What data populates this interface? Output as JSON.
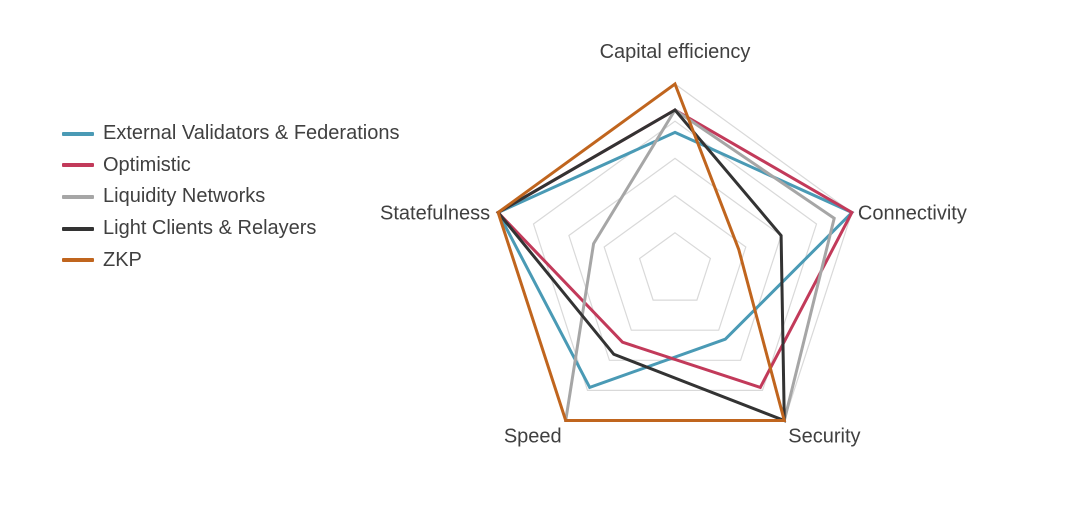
{
  "chart_data": {
    "type": "radar",
    "axes": [
      "Capital efficiency",
      "Connectivity",
      "Security",
      "Speed",
      "Statefulness"
    ],
    "rlim": [
      0,
      5
    ],
    "grid": true,
    "legend_position": "left",
    "series": [
      {
        "name": "External Validators & Federations",
        "color": "#4a9ab5",
        "values": [
          3.7,
          5.0,
          2.3,
          3.9,
          5.0
        ]
      },
      {
        "name": "Optimistic",
        "color": "#c23a5a",
        "values": [
          4.3,
          5.0,
          3.9,
          2.4,
          5.0
        ]
      },
      {
        "name": "Liquidity Networks",
        "color": "#a6a6a6",
        "values": [
          4.3,
          4.5,
          5.0,
          5.0,
          2.3
        ]
      },
      {
        "name": "Light Clients & Relayers",
        "color": "#333333",
        "values": [
          4.3,
          3.0,
          5.0,
          2.8,
          5.0
        ]
      },
      {
        "name": "ZKP",
        "color": "#c0651e",
        "values": [
          5.0,
          1.8,
          5.0,
          5.0,
          5.0
        ]
      }
    ]
  }
}
